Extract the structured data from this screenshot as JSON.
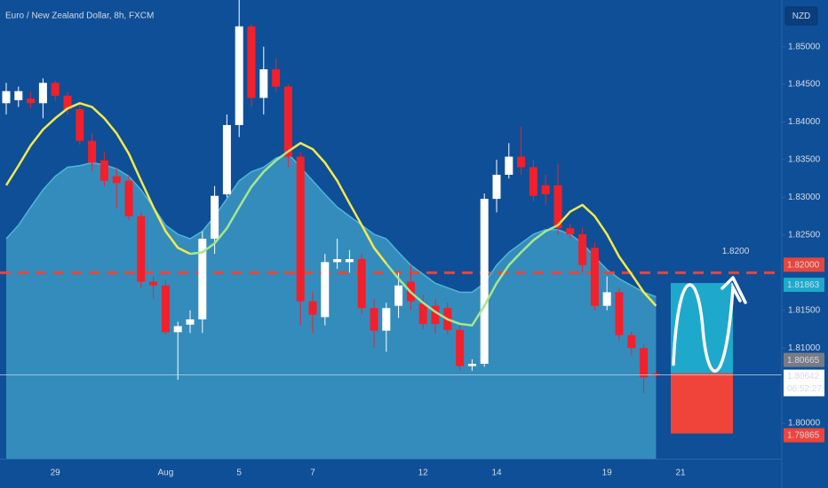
{
  "chart_data": {
    "type": "candlestick",
    "title": "Euro / New Zealand Dollar, 8h, FXCM",
    "currency": "NZD",
    "categories": [
      null,
      null,
      null,
      null,
      "29",
      null,
      null,
      null,
      null,
      null,
      null,
      null,
      null,
      "Aug",
      null,
      null,
      null,
      null,
      null,
      "5",
      null,
      null,
      null,
      null,
      null,
      "7",
      null,
      null,
      null,
      null,
      null,
      null,
      null,
      null,
      "12",
      null,
      null,
      null,
      null,
      null,
      "14",
      null,
      null,
      null,
      null,
      null,
      null,
      null,
      null,
      "19",
      null,
      null,
      null,
      null,
      null,
      "21"
    ],
    "open": [
      1.8425,
      1.8429,
      1.8431,
      1.8425,
      1.8452,
      1.8435,
      1.8417,
      1.8375,
      1.8349,
      1.8328,
      1.8322,
      1.8275,
      1.8188,
      1.8183,
      1.8121,
      1.8131,
      1.8138,
      1.8245,
      1.8304,
      1.8396,
      1.8527,
      1.8432,
      1.847,
      1.8447,
      1.8354,
      1.8162,
      1.8141,
      1.8214,
      1.8214,
      1.8218,
      1.8153,
      1.8123,
      1.8156,
      1.8188,
      1.8159,
      1.8156,
      1.8153,
      1.8124,
      1.8076,
      1.8079,
      1.8298,
      1.833,
      1.8354,
      1.834,
      1.8316,
      1.8316,
      1.8259,
      1.8251,
      1.8233,
      1.8156,
      1.8174,
      1.8117,
      1.81,
      1.8066,
      null,
      null
    ],
    "high": [
      1.8452,
      1.8447,
      1.844,
      1.8458,
      1.8455,
      1.844,
      1.8425,
      1.8385,
      1.836,
      1.834,
      1.833,
      1.828,
      1.8195,
      1.819,
      1.8135,
      1.815,
      1.8255,
      1.8315,
      1.841,
      1.8565,
      1.853,
      1.85,
      1.8485,
      1.845,
      1.836,
      1.8175,
      1.8225,
      1.8245,
      1.823,
      1.8225,
      1.8165,
      1.816,
      1.82,
      1.821,
      1.817,
      1.8165,
      1.816,
      1.813,
      1.8085,
      1.8305,
      1.835,
      1.8372,
      1.8394,
      1.835,
      1.833,
      1.8345,
      1.8265,
      1.826,
      1.824,
      1.8195,
      1.818,
      1.8122,
      1.8105,
      1.807,
      null,
      null
    ],
    "low": [
      1.841,
      1.842,
      1.8418,
      1.8405,
      1.8428,
      1.841,
      1.837,
      1.8335,
      1.8315,
      1.8285,
      1.827,
      1.818,
      1.8165,
      1.8118,
      1.8058,
      1.812,
      1.812,
      1.8225,
      1.83,
      1.838,
      1.842,
      1.841,
      1.844,
      1.834,
      1.813,
      1.812,
      1.813,
      1.8205,
      1.82,
      1.8145,
      1.81,
      1.8095,
      1.814,
      1.815,
      1.8125,
      1.812,
      1.8118,
      1.807,
      1.807,
      1.8075,
      1.828,
      1.8325,
      1.833,
      1.8295,
      1.829,
      1.825,
      1.8245,
      1.82,
      1.815,
      1.815,
      1.811,
      1.809,
      1.804,
      1.806,
      null,
      null
    ],
    "close": [
      1.8441,
      1.8441,
      1.8425,
      1.8452,
      1.8435,
      1.8417,
      1.8375,
      1.8346,
      1.8322,
      1.8319,
      1.8275,
      1.8188,
      1.8183,
      1.8121,
      1.8129,
      1.8138,
      1.8245,
      1.8302,
      1.8396,
      1.8527,
      1.8432,
      1.847,
      1.8447,
      1.8354,
      1.8162,
      1.8144,
      1.8214,
      1.8218,
      1.8218,
      1.8153,
      1.8123,
      1.8153,
      1.8183,
      1.8162,
      1.8132,
      1.8132,
      1.8124,
      1.8076,
      1.8079,
      1.8298,
      1.833,
      1.8354,
      1.834,
      1.8302,
      1.8304,
      1.8259,
      1.8251,
      1.821,
      1.8156,
      1.8174,
      1.8117,
      1.81,
      1.8061,
      1.80642,
      null,
      null
    ],
    "up_color": "#ffffff",
    "down_color": "#f2202b",
    "area": {
      "color": "#4fb6d6",
      "values": [
        1.8245,
        1.8263,
        1.8287,
        1.831,
        1.8328,
        1.834,
        1.8342,
        1.8346,
        1.8343,
        1.8338,
        1.8328,
        1.831,
        1.8287,
        1.8263,
        1.8251,
        1.8245,
        1.8255,
        1.8275,
        1.8298,
        1.8322,
        1.8334,
        1.834,
        1.8352,
        1.8358,
        1.834,
        1.8322,
        1.8304,
        1.8287,
        1.8275,
        1.8263,
        1.8251,
        1.8245,
        1.8227,
        1.821,
        1.8198,
        1.8186,
        1.818,
        1.8174,
        1.8174,
        1.8186,
        1.821,
        1.8227,
        1.8239,
        1.8251,
        1.8257,
        1.8257,
        1.8251,
        1.8239,
        1.8221,
        1.8204,
        1.8192,
        1.8183,
        1.8174,
        1.8168,
        null,
        null
      ]
    },
    "series": [
      {
        "color": "#f5e94a",
        "values": [
          1.8316,
          1.8342,
          1.8369,
          1.839,
          1.8405,
          1.8418,
          1.8425,
          1.842,
          1.8405,
          1.8385,
          1.8358,
          1.8322,
          1.8287,
          1.8255,
          1.8233,
          1.8225,
          null,
          null,
          null,
          null,
          null,
          null,
          null,
          1.8361,
          1.8372,
          1.8364,
          1.8346,
          1.8322,
          1.8292,
          1.8263,
          1.8233,
          1.8212,
          null,
          null,
          null,
          null,
          null,
          null,
          null,
          null,
          null,
          null,
          null,
          null,
          null,
          1.8263,
          1.8281,
          1.829,
          1.8275,
          1.8251,
          1.8221,
          1.8198,
          1.8174,
          1.8156,
          null,
          null
        ]
      },
      {
        "color": "#a6e68e",
        "values": [
          null,
          null,
          null,
          null,
          null,
          null,
          null,
          null,
          null,
          null,
          null,
          null,
          null,
          null,
          null,
          1.8225,
          1.8227,
          1.8239,
          1.8259,
          1.8287,
          1.8314,
          1.8334,
          1.8349,
          1.8361,
          null,
          null,
          null,
          null,
          null,
          null,
          null,
          1.8212,
          1.8192,
          1.8174,
          1.816,
          1.8148,
          1.8138,
          1.8132,
          1.813,
          1.8156,
          1.8186,
          1.821,
          1.8227,
          1.8243,
          1.8255,
          1.8263,
          null,
          null,
          null,
          null,
          null,
          null,
          null,
          null,
          null,
          null
        ]
      }
    ],
    "ylim": [
      1.7953,
      1.8562
    ],
    "yticks": [
      {
        "value": 1.85,
        "label": "1.85000"
      },
      {
        "value": 1.845,
        "label": "1.84500"
      },
      {
        "value": 1.84,
        "label": "1.84000"
      },
      {
        "value": 1.835,
        "label": "1.83500"
      },
      {
        "value": 1.83,
        "label": "1.83000"
      },
      {
        "value": 1.825,
        "label": "1.82500"
      },
      {
        "value": 1.815,
        "label": "1.81500"
      },
      {
        "value": 1.81,
        "label": "1.81000"
      },
      {
        "value": 1.8,
        "label": "1.80000"
      }
    ],
    "level": {
      "value": 1.82,
      "label": "1.82000",
      "color": "#e8453c",
      "annotation": "1.8200"
    },
    "position": {
      "target": {
        "value": 1.81863,
        "label": "1.81863",
        "color": "#1ea9cc"
      },
      "entry": {
        "value": 1.80665,
        "label": "1.80665",
        "color": "#787b86"
      },
      "stop": {
        "value": 1.79865,
        "label": "1.79865",
        "color": "#f0443a"
      }
    },
    "current_price": {
      "value": 1.80642,
      "label": "1.80642",
      "countdown": "06:52:27"
    }
  }
}
